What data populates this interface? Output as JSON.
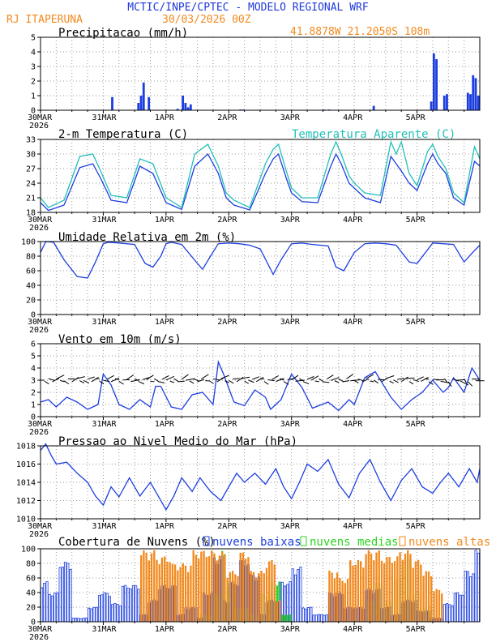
{
  "header": {
    "title": "MCTIC/INPE/CPTEC - MODELO REGIONAL WRF",
    "station": "RJ ITAPERUNA",
    "run": "30/03/2026 00Z",
    "location": "41.8878W 21.2050S 108m"
  },
  "colors": {
    "blue": "#1c3ee0",
    "cyan": "#22bfb8",
    "orange": "#f28a1e",
    "green": "#2bd41f",
    "title_blue": "#1f39dc",
    "axis": "#000000",
    "grid": "#9a9a9a"
  },
  "time_axis": {
    "labels": [
      "30MAR",
      "31MAR",
      "1APR",
      "2APR",
      "3APR",
      "4APR",
      "5APR"
    ],
    "year_label": "2026",
    "hours_total": 168
  },
  "chart_data": [
    {
      "id": "precip",
      "type": "bar",
      "title": "Precipitacao (mm/h)",
      "ylim": [
        0,
        5
      ],
      "yticks": [
        0,
        1,
        2,
        3,
        4,
        5
      ],
      "x": [
        27,
        37,
        38,
        39,
        41,
        52,
        54,
        55,
        56,
        57,
        76,
        77,
        108,
        110,
        127,
        149,
        150,
        151,
        154,
        155,
        163,
        164,
        165,
        166,
        167
      ],
      "values": [
        0.9,
        0.5,
        1.0,
        1.9,
        0.9,
        0.1,
        1.0,
        0.5,
        0.2,
        0.4,
        0.05,
        0.05,
        0.05,
        0.05,
        0.3,
        0.6,
        3.9,
        3.5,
        1.0,
        1.1,
        1.2,
        1.1,
        2.4,
        2.2,
        1.0
      ]
    },
    {
      "id": "temp",
      "type": "line",
      "title": "2-m Temperatura (C)",
      "legend": "Temperatura Aparente (C)",
      "ylim": [
        18,
        33
      ],
      "yticks": [
        18,
        21,
        24,
        27,
        30,
        33
      ],
      "series": [
        {
          "name": "2-m Temperatura (C)",
          "color": "blue",
          "x": [
            0,
            3,
            9,
            15,
            20,
            23,
            27,
            33,
            38,
            43,
            48,
            54,
            59,
            64,
            68,
            71,
            74,
            80,
            86,
            89,
            91,
            94,
            96,
            100,
            106,
            111,
            113,
            115,
            118,
            120,
            124,
            130,
            134,
            136,
            138,
            141,
            144,
            148,
            150,
            152,
            155,
            158,
            162,
            166,
            168
          ],
          "values": [
            20,
            18.4,
            19.5,
            27.2,
            28,
            25,
            20.5,
            20,
            27.5,
            26,
            20,
            18.6,
            27.5,
            30,
            26,
            21,
            19.5,
            18.5,
            26,
            29,
            30,
            25,
            22,
            20.2,
            20,
            27.5,
            30,
            28,
            24,
            23,
            21,
            20,
            29.5,
            28,
            26.5,
            24,
            22.5,
            28,
            30,
            28,
            26,
            21,
            19.5,
            28.5,
            27.5
          ]
        },
        {
          "name": "Temperatura Aparente (C)",
          "color": "cyan",
          "x": [
            0,
            3,
            9,
            15,
            20,
            23,
            27,
            33,
            38,
            43,
            48,
            54,
            59,
            64,
            68,
            71,
            74,
            80,
            86,
            89,
            91,
            94,
            96,
            100,
            106,
            111,
            113,
            115,
            118,
            120,
            124,
            130,
            134,
            136,
            138,
            141,
            144,
            148,
            150,
            152,
            155,
            158,
            162,
            166,
            168
          ],
          "values": [
            21,
            19,
            20.5,
            29.5,
            30,
            26.5,
            21.5,
            21,
            29,
            28,
            21,
            19,
            30,
            32,
            27.5,
            22,
            20.5,
            19,
            28,
            31,
            32,
            26.5,
            23,
            21,
            21,
            30,
            32.5,
            30,
            25.5,
            24,
            22,
            21.5,
            32.5,
            30,
            32.5,
            26,
            23.5,
            30.5,
            32,
            29.5,
            27,
            22,
            20,
            31.5,
            29
          ]
        }
      ]
    },
    {
      "id": "rh",
      "type": "line",
      "title": "Umidade Relativa em 2m (%)",
      "ylim": [
        0,
        100
      ],
      "yticks": [
        0,
        20,
        40,
        60,
        80,
        100
      ],
      "series": [
        {
          "name": "Umidade Relativa em 2m (%)",
          "color": "blue",
          "x": [
            0,
            2,
            5,
            9,
            14,
            18,
            21,
            24,
            26,
            30,
            36,
            40,
            43,
            46,
            48,
            50,
            54,
            60,
            62,
            65,
            68,
            72,
            76,
            80,
            84,
            89,
            92,
            96,
            100,
            104,
            110,
            113,
            116,
            120,
            124,
            128,
            132,
            136,
            141,
            144,
            150,
            154,
            158,
            162,
            165,
            168
          ],
          "values": [
            85,
            100,
            99,
            75,
            52,
            50,
            72,
            97,
            99,
            98,
            96,
            70,
            65,
            80,
            97,
            99,
            96,
            70,
            62,
            80,
            97,
            98,
            97,
            95,
            90,
            55,
            75,
            97,
            98,
            96,
            94,
            65,
            60,
            85,
            97,
            98,
            97,
            95,
            72,
            70,
            98,
            97,
            96,
            72,
            84,
            95
          ]
        }
      ]
    },
    {
      "id": "wind",
      "type": "line",
      "title": "Vento em 10m (m/s)",
      "ylim": [
        0,
        6
      ],
      "yticks": [
        0,
        1,
        2,
        3,
        4,
        5,
        6
      ],
      "series": [
        {
          "name": "Vento em 10m (m/s)",
          "color": "blue",
          "x": [
            0,
            3,
            6,
            10,
            14,
            18,
            22,
            24,
            27,
            30,
            34,
            38,
            42,
            44,
            46,
            50,
            54,
            58,
            62,
            66,
            68,
            70,
            74,
            78,
            82,
            86,
            88,
            92,
            96,
            100,
            104,
            110,
            114,
            118,
            120,
            124,
            128,
            134,
            138,
            142,
            146,
            150,
            154,
            156,
            158,
            162,
            165,
            168
          ],
          "values": [
            1.2,
            1.4,
            0.8,
            1.6,
            1.2,
            0.6,
            1.0,
            3.5,
            2.6,
            1.0,
            0.6,
            1.4,
            0.8,
            2.5,
            2.5,
            0.8,
            0.6,
            1.8,
            2.0,
            1.0,
            4.5,
            3.5,
            1.2,
            0.9,
            2.2,
            1.6,
            0.6,
            1.4,
            3.5,
            2.4,
            0.7,
            1.2,
            0.5,
            1.4,
            1.0,
            3.2,
            3.7,
            1.6,
            0.6,
            1.4,
            2.0,
            3.0,
            2.0,
            2.4,
            3.2,
            2.0,
            4.0,
            3.0
          ]
        }
      ]
    },
    {
      "id": "pressure",
      "type": "line",
      "title": "Pressao ao Nivel Medio do Mar (hPa)",
      "ylim": [
        1010,
        1018
      ],
      "yticks": [
        1010,
        1012,
        1014,
        1016,
        1018
      ],
      "series": [
        {
          "name": "Pressao ao Nivel Medio do Mar (hPa)",
          "color": "blue",
          "x": [
            0,
            2,
            4,
            6,
            10,
            14,
            18,
            21,
            24,
            27,
            30,
            34,
            38,
            42,
            44,
            48,
            51,
            54,
            58,
            61,
            65,
            69,
            72,
            75,
            78,
            82,
            86,
            90,
            93,
            96,
            99,
            102,
            106,
            110,
            114,
            118,
            122,
            126,
            130,
            134,
            138,
            142,
            146,
            150,
            153,
            156,
            160,
            164,
            167,
            168
          ],
          "values": [
            1017.5,
            1018.2,
            1017,
            1016,
            1016.2,
            1015,
            1014,
            1012.5,
            1011.5,
            1013.5,
            1012.4,
            1014.5,
            1012.5,
            1014,
            1013,
            1011,
            1012.5,
            1014.5,
            1013,
            1014.5,
            1013,
            1012,
            1013.5,
            1015,
            1014,
            1015,
            1013.8,
            1015.5,
            1013.5,
            1012.2,
            1014,
            1016,
            1015.2,
            1016.5,
            1013.8,
            1012.3,
            1015,
            1016.5,
            1014,
            1012,
            1014.2,
            1015.5,
            1013.5,
            1012.8,
            1014,
            1015,
            1013.5,
            1015.5,
            1014,
            1015.5
          ]
        }
      ]
    },
    {
      "id": "clouds",
      "type": "bar",
      "title": "Cobertura de Nuvens (%)",
      "ylim": [
        0,
        100
      ],
      "yticks": [
        0,
        20,
        40,
        60,
        80,
        100
      ],
      "legend": [
        "nuvens baixas",
        "nuvens medias",
        "nuvens altas"
      ],
      "series": [
        {
          "name": "nuvens baixas",
          "color": "blue",
          "style": "outline",
          "segments": [
            {
              "from": 0,
              "to": 3,
              "value": 55
            },
            {
              "from": 3,
              "to": 7,
              "value": 40
            },
            {
              "from": 7,
              "to": 12,
              "value": 82
            },
            {
              "from": 12,
              "to": 18,
              "value": 5
            },
            {
              "from": 18,
              "to": 22,
              "value": 20
            },
            {
              "from": 22,
              "to": 27,
              "value": 40
            },
            {
              "from": 27,
              "to": 31,
              "value": 25
            },
            {
              "from": 31,
              "to": 38,
              "value": 50
            },
            {
              "from": 38,
              "to": 41,
              "value": 10
            },
            {
              "from": 41,
              "to": 45,
              "value": 30
            },
            {
              "from": 45,
              "to": 52,
              "value": 50
            },
            {
              "from": 52,
              "to": 55,
              "value": 10
            },
            {
              "from": 55,
              "to": 60,
              "value": 20
            },
            {
              "from": 60,
              "to": 62,
              "value": 5
            },
            {
              "from": 62,
              "to": 66,
              "value": 40
            },
            {
              "from": 66,
              "to": 70,
              "value": 90
            },
            {
              "from": 70,
              "to": 72,
              "value": 30
            },
            {
              "from": 72,
              "to": 76,
              "value": 55
            },
            {
              "from": 76,
              "to": 80,
              "value": 85
            },
            {
              "from": 80,
              "to": 84,
              "value": 65
            },
            {
              "from": 84,
              "to": 86,
              "value": 10
            },
            {
              "from": 86,
              "to": 91,
              "value": 30
            },
            {
              "from": 91,
              "to": 96,
              "value": 55
            },
            {
              "from": 96,
              "to": 100,
              "value": 75
            },
            {
              "from": 100,
              "to": 104,
              "value": 20
            },
            {
              "from": 104,
              "to": 110,
              "value": 10
            },
            {
              "from": 110,
              "to": 116,
              "value": 40
            },
            {
              "from": 116,
              "to": 124,
              "value": 20
            },
            {
              "from": 124,
              "to": 130,
              "value": 45
            },
            {
              "from": 130,
              "to": 134,
              "value": 20
            },
            {
              "from": 134,
              "to": 138,
              "value": 10
            },
            {
              "from": 138,
              "to": 144,
              "value": 30
            },
            {
              "from": 144,
              "to": 149,
              "value": 15
            },
            {
              "from": 149,
              "to": 154,
              "value": 5
            },
            {
              "from": 154,
              "to": 158,
              "value": 25
            },
            {
              "from": 158,
              "to": 162,
              "value": 40
            },
            {
              "from": 162,
              "to": 166,
              "value": 70
            },
            {
              "from": 166,
              "to": 168,
              "value": 98
            }
          ]
        },
        {
          "name": "nuvens medias",
          "color": "green",
          "style": "filled",
          "segments": [
            {
              "from": 61,
              "to": 66,
              "value": 10
            },
            {
              "from": 66,
              "to": 69,
              "value": 40
            },
            {
              "from": 69,
              "to": 71,
              "value": 97
            },
            {
              "from": 71,
              "to": 74,
              "value": 55
            },
            {
              "from": 74,
              "to": 80,
              "value": 20
            },
            {
              "from": 80,
              "to": 84,
              "value": 10
            },
            {
              "from": 84,
              "to": 88,
              "value": 40
            },
            {
              "from": 88,
              "to": 92,
              "value": 55
            },
            {
              "from": 92,
              "to": 96,
              "value": 10
            },
            {
              "from": 125,
              "to": 128,
              "value": 30
            },
            {
              "from": 128,
              "to": 131,
              "value": 55
            },
            {
              "from": 131,
              "to": 135,
              "value": 30
            },
            {
              "from": 135,
              "to": 138,
              "value": 60
            },
            {
              "from": 138,
              "to": 142,
              "value": 90
            },
            {
              "from": 142,
              "to": 145,
              "value": 40
            },
            {
              "from": 145,
              "to": 150,
              "value": 20
            }
          ]
        },
        {
          "name": "nuvens altas",
          "color": "orange",
          "style": "filled",
          "segments": [
            {
              "from": 38,
              "to": 44,
              "value": 98
            },
            {
              "from": 44,
              "to": 50,
              "value": 90
            },
            {
              "from": 50,
              "to": 58,
              "value": 80
            },
            {
              "from": 58,
              "to": 66,
              "value": 98
            },
            {
              "from": 66,
              "to": 71,
              "value": 96
            },
            {
              "from": 71,
              "to": 76,
              "value": 70
            },
            {
              "from": 76,
              "to": 80,
              "value": 96
            },
            {
              "from": 80,
              "to": 86,
              "value": 70
            },
            {
              "from": 86,
              "to": 90,
              "value": 85
            },
            {
              "from": 90,
              "to": 92,
              "value": 30
            },
            {
              "from": 110,
              "to": 114,
              "value": 70
            },
            {
              "from": 114,
              "to": 118,
              "value": 60
            },
            {
              "from": 118,
              "to": 124,
              "value": 85
            },
            {
              "from": 124,
              "to": 130,
              "value": 98
            },
            {
              "from": 130,
              "to": 137,
              "value": 90
            },
            {
              "from": 137,
              "to": 142,
              "value": 98
            },
            {
              "from": 142,
              "to": 146,
              "value": 85
            },
            {
              "from": 146,
              "to": 150,
              "value": 70
            },
            {
              "from": 150,
              "to": 154,
              "value": 45
            }
          ]
        }
      ]
    }
  ]
}
